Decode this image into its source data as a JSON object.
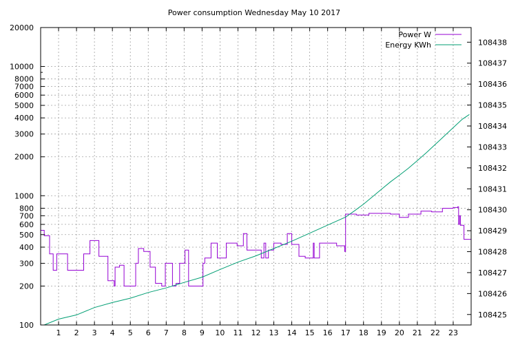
{
  "chart_data": {
    "type": "line",
    "title": "Power consumption Wednesday May 10 2017",
    "xlabel": "",
    "ylabel": "",
    "y2label": "",
    "xlim": [
      0,
      24
    ],
    "x_ticks": [
      1,
      2,
      3,
      4,
      5,
      6,
      7,
      8,
      9,
      10,
      11,
      12,
      13,
      14,
      15,
      16,
      17,
      18,
      19,
      20,
      21,
      22,
      23
    ],
    "y_scale": "log",
    "ylim": [
      100,
      20000
    ],
    "y_ticks": [
      100,
      200,
      300,
      400,
      500,
      600,
      700,
      800,
      1000,
      2000,
      3000,
      4000,
      5000,
      6000,
      7000,
      8000,
      10000,
      20000
    ],
    "y2lim": [
      108424.5,
      108438.7
    ],
    "y2_ticks": [
      108425,
      108426,
      108427,
      108428,
      108429,
      108430,
      108431,
      108432,
      108433,
      108434,
      108435,
      108436,
      108437,
      108438
    ],
    "grid": true,
    "legend_position": "top-right",
    "colors": {
      "power": "#9400d3",
      "energy": "#009e73",
      "grid": "#a0a0a0"
    },
    "series": [
      {
        "name": "Power W",
        "axis": "left",
        "style": "step",
        "x": [
          0,
          0.2,
          0.5,
          0.7,
          0.9,
          1.1,
          1.5,
          2.3,
          2.4,
          2.75,
          2.85,
          3.25,
          3.35,
          3.75,
          3.9,
          4.1,
          4.15,
          4.35,
          4.4,
          4.65,
          4.75,
          5.05,
          5.3,
          5.45,
          5.75,
          6.1,
          6.4,
          6.7,
          6.75,
          6.95,
          7.0,
          7.35,
          7.55,
          7.75,
          8.05,
          8.05,
          8.25,
          9.0,
          9.05,
          9.15,
          9.5,
          9.85,
          10.35,
          10.5,
          10.95,
          11.3,
          11.5,
          11.9,
          12.3,
          12.45,
          12.55,
          12.7,
          13.0,
          13.4,
          13.75,
          14.0,
          14.4,
          14.6,
          14.75,
          15.2,
          15.25,
          15.55,
          16.5,
          16.9,
          16.95,
          17.0,
          17.6,
          18.3,
          19.5,
          20.0,
          20.5,
          21.2,
          21.8,
          22.4,
          22.8,
          23.0,
          23.25,
          23.3,
          23.35,
          23.4,
          23.6,
          23.8,
          24.0
        ],
        "values": [
          540,
          490,
          355,
          265,
          355,
          355,
          265,
          265,
          355,
          450,
          450,
          340,
          340,
          220,
          220,
          200,
          280,
          280,
          290,
          200,
          200,
          200,
          300,
          390,
          370,
          280,
          210,
          210,
          200,
          300,
          300,
          200,
          210,
          300,
          380,
          380,
          200,
          200,
          300,
          330,
          430,
          330,
          430,
          430,
          410,
          510,
          380,
          380,
          330,
          430,
          330,
          380,
          430,
          420,
          510,
          420,
          340,
          340,
          330,
          430,
          330,
          430,
          410,
          410,
          370,
          720,
          710,
          730,
          720,
          680,
          720,
          760,
          750,
          800,
          800,
          810,
          820,
          600,
          700,
          590,
          460,
          460,
          460
        ]
      },
      {
        "name": "Energy KWh",
        "axis": "right",
        "style": "line",
        "x": [
          0.2,
          1,
          2,
          3,
          4,
          5,
          6,
          7,
          8,
          9,
          10,
          11,
          12,
          13,
          14,
          15,
          16,
          17,
          17.5,
          18,
          18.5,
          19,
          19.5,
          20,
          20.5,
          21,
          21.5,
          22,
          22.5,
          23,
          23.5,
          23.9
        ],
        "values": [
          108424.5,
          108424.78,
          108424.98,
          108425.33,
          108425.57,
          108425.78,
          108426.05,
          108426.27,
          108426.53,
          108426.78,
          108427.15,
          108427.5,
          108427.8,
          108428.15,
          108428.5,
          108428.88,
          108429.27,
          108429.65,
          108429.95,
          108430.27,
          108430.62,
          108430.98,
          108431.33,
          108431.65,
          108431.98,
          108432.35,
          108432.72,
          108433.12,
          108433.52,
          108433.92,
          108434.32,
          108434.55
        ]
      }
    ]
  }
}
